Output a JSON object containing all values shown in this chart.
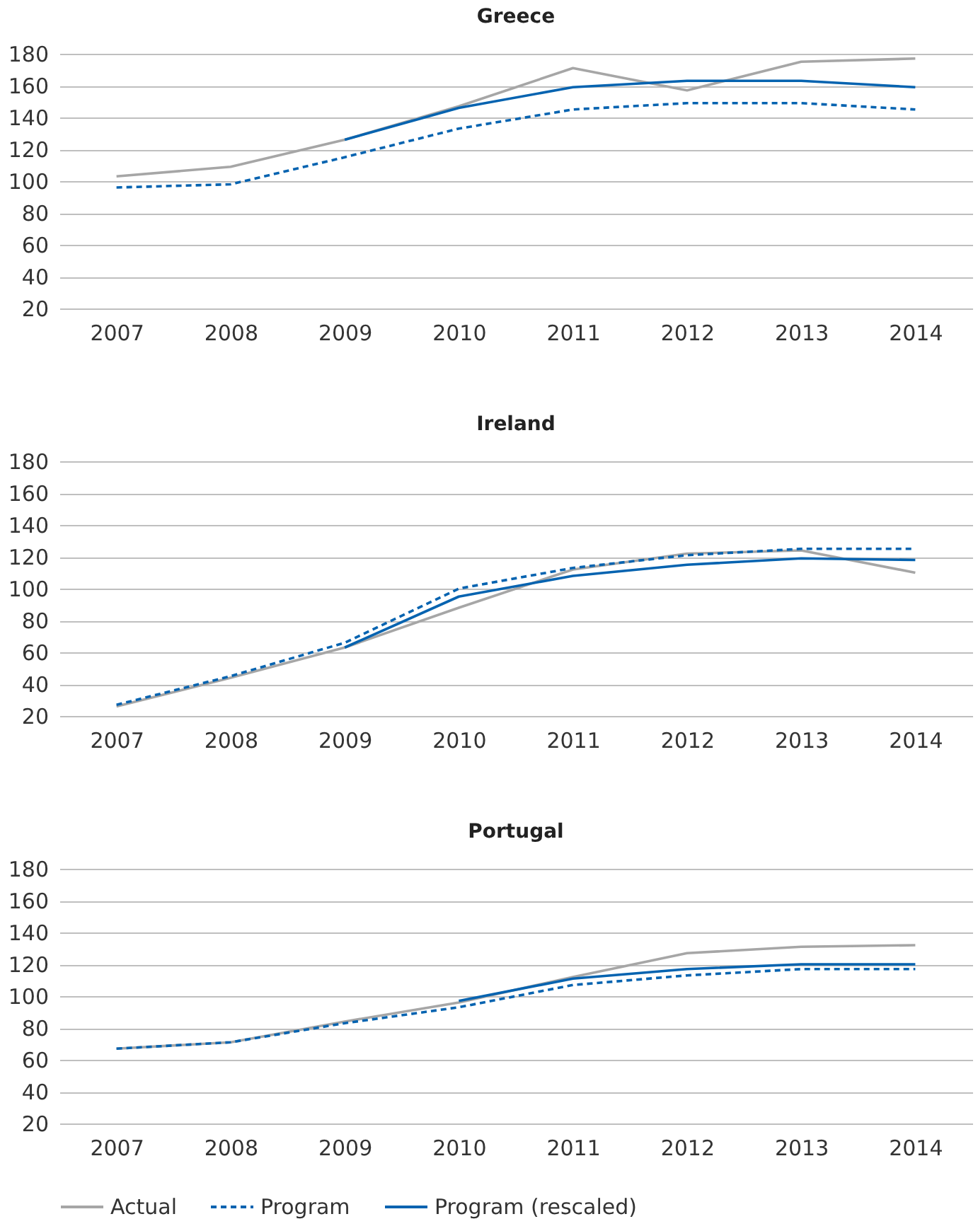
{
  "chart_data": [
    {
      "type": "line",
      "title": "Greece",
      "categories": [
        "2007",
        "2008",
        "2009",
        "2010",
        "2011",
        "2012",
        "2013",
        "2014"
      ],
      "ylim": [
        20,
        180
      ],
      "yticks": [
        20,
        40,
        60,
        80,
        100,
        120,
        140,
        160,
        180
      ],
      "grid": "y",
      "legend": false,
      "series": [
        {
          "color": "#a6a6a6",
          "line_style": "solid",
          "values": [
            103,
            109,
            126,
            147,
            171,
            157,
            175,
            177
          ]
        },
        {
          "color": "#0563b0",
          "line_style": "dashed",
          "values": [
            96,
            98,
            115,
            133,
            145,
            149,
            149,
            145
          ]
        },
        {
          "color": "#0563b0",
          "line_style": "solid",
          "values": [
            null,
            null,
            126,
            146,
            159,
            163,
            163,
            159
          ]
        }
      ]
    },
    {
      "type": "line",
      "title": "Ireland",
      "categories": [
        "2007",
        "2008",
        "2009",
        "2010",
        "2011",
        "2012",
        "2013",
        "2014"
      ],
      "ylim": [
        20,
        180
      ],
      "yticks": [
        20,
        40,
        60,
        80,
        100,
        120,
        140,
        160,
        180
      ],
      "grid": "y",
      "legend": false,
      "series": [
        {
          "color": "#a6a6a6",
          "line_style": "solid",
          "values": [
            26,
            44,
            63,
            88,
            112,
            122,
            124,
            110
          ]
        },
        {
          "color": "#0563b0",
          "line_style": "dashed",
          "values": [
            27,
            45,
            66,
            100,
            113,
            121,
            125,
            125
          ]
        },
        {
          "color": "#0563b0",
          "line_style": "solid",
          "values": [
            null,
            null,
            63,
            95,
            108,
            115,
            119,
            118
          ]
        }
      ]
    },
    {
      "type": "line",
      "title": "Portugal",
      "categories": [
        "2007",
        "2008",
        "2009",
        "2010",
        "2011",
        "2012",
        "2013",
        "2014"
      ],
      "ylim": [
        20,
        180
      ],
      "yticks": [
        20,
        40,
        60,
        80,
        100,
        120,
        140,
        160,
        180
      ],
      "grid": "y",
      "legend": "bottom",
      "series": [
        {
          "name": "Actual",
          "color": "#a6a6a6",
          "line_style": "solid",
          "values": [
            67,
            71,
            84,
            96,
            112,
            127,
            131,
            132
          ]
        },
        {
          "name": "Program",
          "color": "#0563b0",
          "line_style": "dashed",
          "values": [
            67,
            71,
            83,
            93,
            107,
            113,
            117,
            117
          ]
        },
        {
          "name": "Program (rescaled)",
          "color": "#0563b0",
          "line_style": "solid",
          "values": [
            null,
            null,
            null,
            97,
            111,
            117,
            120,
            120
          ]
        }
      ]
    }
  ]
}
